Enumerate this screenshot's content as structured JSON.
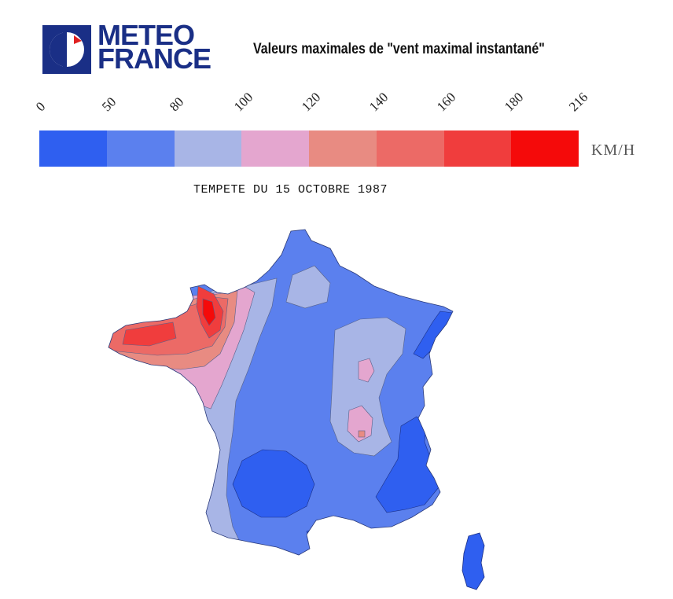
{
  "logo": {
    "line1": "METEO",
    "line2": "FRANCE",
    "brand_color": "#1a2f86",
    "accent_color": "#e02020"
  },
  "title": "Valeurs maximales de \"vent maximal instantané\"",
  "legend": {
    "ticks": [
      "0",
      "50",
      "80",
      "100",
      "120",
      "140",
      "160",
      "180",
      "216"
    ],
    "colors": [
      "#2f5ff0",
      "#5b80ee",
      "#a8b5e6",
      "#e4a6cf",
      "#e88b82",
      "#ec6a66",
      "#f03d3d",
      "#f50a0a"
    ],
    "unit": "KM/H"
  },
  "subtitle": "TEMPETE DU 15 OCTOBRE 1987",
  "map": {
    "name": "France",
    "island": "Corsica",
    "max_region": "Bretagne / Cotentin"
  }
}
